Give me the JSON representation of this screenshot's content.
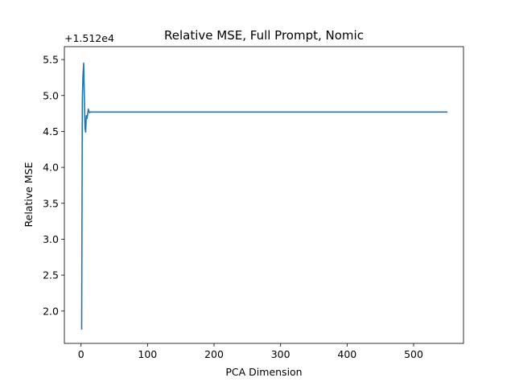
{
  "chart_data": {
    "type": "line",
    "title": "Relative MSE, Full Prompt, Nomic",
    "xlabel": "PCA Dimension",
    "ylabel": "Relative MSE",
    "offset_label": "+1.512e4",
    "xlim": [
      -25,
      575
    ],
    "ylim": [
      1.55,
      5.68
    ],
    "xticks": [
      0,
      100,
      200,
      300,
      400,
      500
    ],
    "xtick_labels": [
      "0",
      "100",
      "200",
      "300",
      "400",
      "500"
    ],
    "yticks": [
      2.0,
      2.5,
      3.0,
      3.5,
      4.0,
      4.5,
      5.0,
      5.5
    ],
    "ytick_labels": [
      "2.0",
      "2.5",
      "3.0",
      "3.5",
      "4.0",
      "4.5",
      "5.0",
      "5.5"
    ],
    "grid": false,
    "series": [
      {
        "color": "#1f77b4",
        "x": [
          1,
          2,
          3,
          4,
          5,
          6,
          7,
          8,
          9,
          10,
          11,
          12,
          13,
          14,
          15,
          20,
          30,
          50,
          100,
          200,
          300,
          400,
          500,
          550
        ],
        "y": [
          1.75,
          4.95,
          5.28,
          5.45,
          4.98,
          4.55,
          4.49,
          4.72,
          4.68,
          4.74,
          4.81,
          4.78,
          4.76,
          4.77,
          4.77,
          4.77,
          4.77,
          4.77,
          4.77,
          4.77,
          4.77,
          4.77,
          4.77,
          4.77
        ]
      }
    ]
  }
}
